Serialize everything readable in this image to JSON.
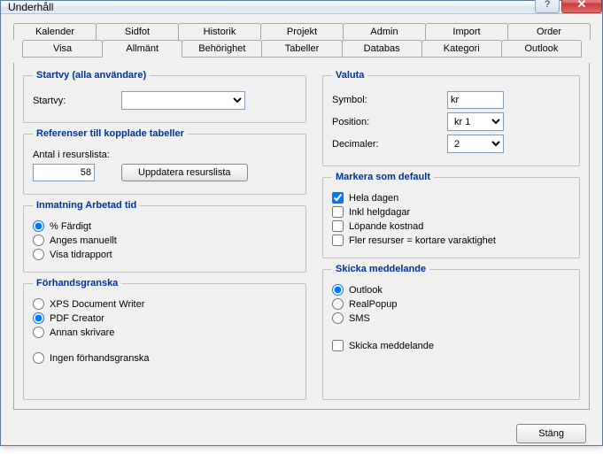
{
  "window": {
    "title": "Underhåll"
  },
  "tabs": {
    "row1": [
      "Kalender",
      "Sidfot",
      "Historik",
      "Projekt",
      "Admin",
      "Import",
      "Order"
    ],
    "row2": [
      "Visa",
      "Allmänt",
      "Behörighet",
      "Tabeller",
      "Databas",
      "Kategori",
      "Outlook"
    ],
    "active": "Allmänt"
  },
  "startvy": {
    "legend": "Startvy (alla användare)",
    "label": "Startvy:",
    "value": ""
  },
  "referenser": {
    "legend": "Referenser till kopplade tabeller",
    "count_label": "Antal i resurslista:",
    "count_value": "58",
    "button": "Uppdatera resurslista"
  },
  "inmatning": {
    "legend": "Inmatning Arbetad tid",
    "options": [
      "% Färdigt",
      "Anges manuellt",
      "Visa tidrapport"
    ],
    "selected": 0
  },
  "forhand": {
    "legend": "Förhandsgranska",
    "options": [
      "XPS Document Writer",
      "PDF Creator",
      "Annan skrivare",
      "Ingen förhandsgranska"
    ],
    "selected": 1
  },
  "valuta": {
    "legend": "Valuta",
    "symbol_label": "Symbol:",
    "symbol_value": "kr",
    "position_label": "Position:",
    "position_value": "kr 1",
    "decimaler_label": "Decimaler:",
    "decimaler_value": "2"
  },
  "markera": {
    "legend": "Markera som default",
    "options": [
      {
        "label": "Hela dagen",
        "checked": true
      },
      {
        "label": "Inkl helgdagar",
        "checked": false
      },
      {
        "label": "Löpande kostnad",
        "checked": false
      },
      {
        "label": "Fler resurser = kortare varaktighet",
        "checked": false
      }
    ]
  },
  "skicka": {
    "legend": "Skicka meddelande",
    "options": [
      "Outlook",
      "RealPopup",
      "SMS"
    ],
    "selected": 0,
    "check_label": "Skicka meddelande",
    "check_checked": false
  },
  "footer": {
    "close": "Stäng"
  }
}
